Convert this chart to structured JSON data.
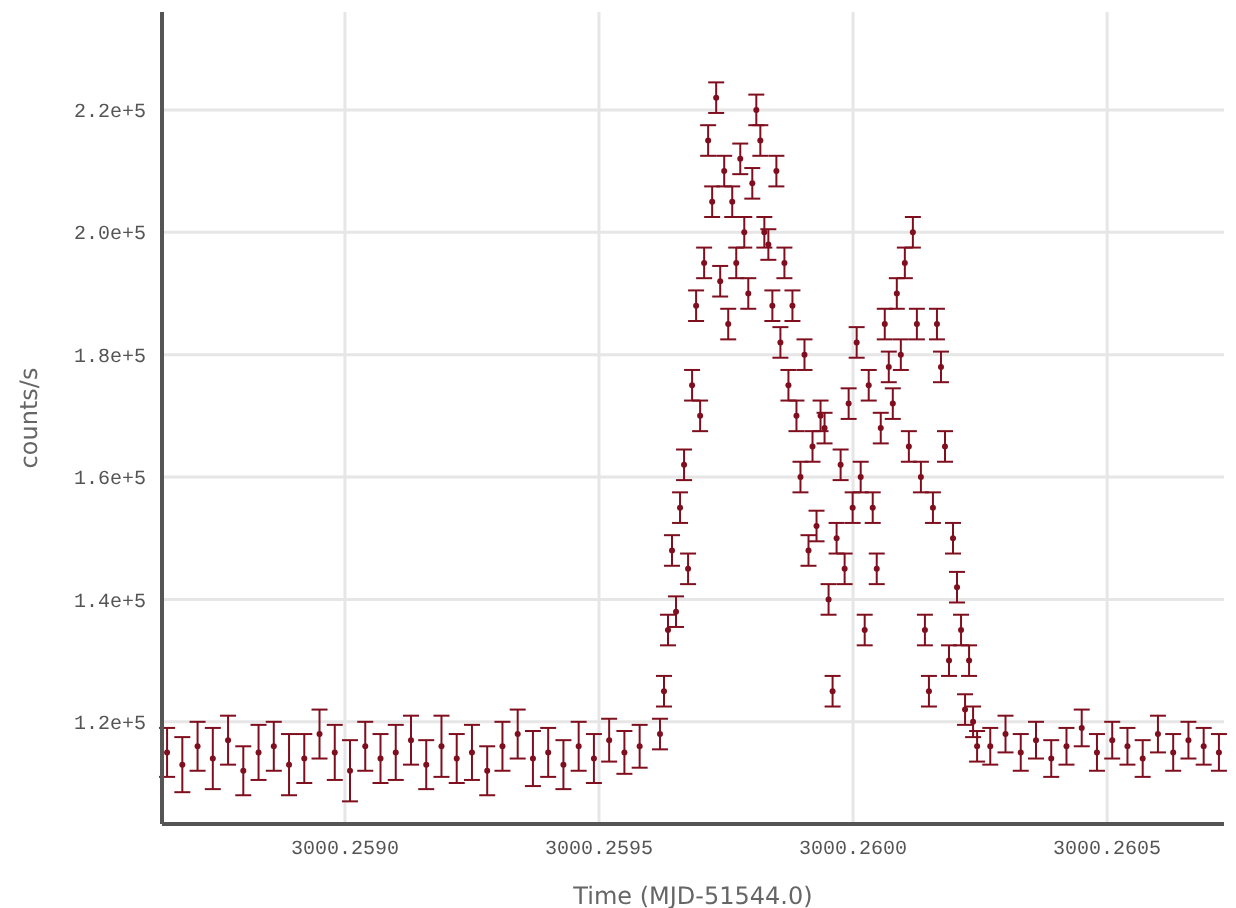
{
  "chart_data": {
    "type": "scatter",
    "xlabel": "Time (MJD-51544.0)",
    "ylabel": "counts/s",
    "marker": "circle",
    "grid": true,
    "xlim": [
      3000.25864,
      3000.26073
    ],
    "xticks": [
      {
        "value": 3000.259,
        "label": "3000.2590"
      },
      {
        "value": 3000.2595,
        "label": "3000.2595"
      },
      {
        "value": 3000.26,
        "label": "3000.2600"
      },
      {
        "value": 3000.2605,
        "label": "3000.2605"
      }
    ],
    "ylim": [
      103300,
      236000
    ],
    "yticks": [
      {
        "value": 120000,
        "label": "1.2e+5"
      },
      {
        "value": 140000,
        "label": "1.4e+5"
      },
      {
        "value": 160000,
        "label": "1.6e+5"
      },
      {
        "value": 180000,
        "label": "1.8e+5"
      },
      {
        "value": 200000,
        "label": "2.0e+5"
      },
      {
        "value": 220000,
        "label": "2.2e+5"
      }
    ],
    "series": [
      {
        "color": "#7f0f1e",
        "x": [
          3000.25865,
          3000.25868,
          3000.25871,
          3000.25874,
          3000.25877,
          3000.2588,
          3000.25883,
          3000.25886,
          3000.25889,
          3000.25892,
          3000.25895,
          3000.25898,
          3000.25901,
          3000.25904,
          3000.25907,
          3000.2591,
          3000.25913,
          3000.25916,
          3000.25919,
          3000.25922,
          3000.25925,
          3000.25928,
          3000.25931,
          3000.25934,
          3000.25937,
          3000.2594,
          3000.25943,
          3000.25946,
          3000.25949,
          3000.25952,
          3000.25955,
          3000.25958,
          3000.25962,
          3000.2596279,
          3000.2596358,
          3000.2596437,
          3000.2596516,
          3000.2596595,
          3000.2596674,
          3000.2596753,
          3000.2596832,
          3000.2596911,
          3000.259699,
          3000.2597069,
          3000.2597148,
          3000.2597227,
          3000.2597306,
          3000.2597385,
          3000.2597464,
          3000.2597543,
          3000.2597622,
          3000.2597701,
          3000.259778,
          3000.2597859,
          3000.2597938,
          3000.2598017,
          3000.2598096,
          3000.2598175,
          3000.2598254,
          3000.2598333,
          3000.2598412,
          3000.2598491,
          3000.259857,
          3000.2598649,
          3000.2598728,
          3000.2598807,
          3000.2598886,
          3000.2598965,
          3000.2599044,
          3000.2599123,
          3000.2599202,
          3000.2599281,
          3000.259936,
          3000.2599439,
          3000.2599518,
          3000.2599597,
          3000.2599676,
          3000.2599755,
          3000.2599834,
          3000.2599913,
          3000.2599992,
          3000.2600071,
          3000.260015,
          3000.2600229,
          3000.2600308,
          3000.2600387,
          3000.2600466,
          3000.2600545,
          3000.2600624,
          3000.2600703,
          3000.2600782,
          3000.2600861,
          3000.260094,
          3000.2601019,
          3000.2601098,
          3000.2601177,
          3000.2601256,
          3000.2601335,
          3000.2601414,
          3000.2601493,
          3000.2601572,
          3000.2601651,
          3000.260173,
          3000.2601809,
          3000.2601888,
          3000.2601967,
          3000.2602046,
          3000.2602125,
          3000.2602204,
          3000.2602283,
          3000.2602362,
          3000.2602441,
          3000.26027,
          3000.2603,
          3000.26033,
          3000.26036,
          3000.26039,
          3000.26042,
          3000.26045,
          3000.26048,
          3000.26051,
          3000.26054,
          3000.26057,
          3000.2606,
          3000.26063,
          3000.26066,
          3000.26069,
          3000.26072
        ],
        "values": [
          115000,
          113000,
          116000,
          114000,
          117000,
          112000,
          115000,
          116000,
          113000,
          114000,
          118000,
          115000,
          112000,
          116000,
          114000,
          115000,
          117000,
          113000,
          116000,
          114000,
          115000,
          112000,
          116000,
          118000,
          114000,
          115000,
          113000,
          116000,
          114000,
          117000,
          115000,
          116000,
          118000,
          125000,
          135000,
          148000,
          138000,
          155000,
          162000,
          145000,
          175000,
          188000,
          170000,
          195000,
          215000,
          205000,
          222000,
          192000,
          210000,
          185000,
          205000,
          195000,
          212000,
          200000,
          190000,
          208000,
          220000,
          215000,
          200000,
          198000,
          188000,
          210000,
          182000,
          195000,
          175000,
          188000,
          170000,
          160000,
          180000,
          148000,
          165000,
          152000,
          170000,
          168000,
          140000,
          125000,
          150000,
          162000,
          145000,
          172000,
          155000,
          182000,
          160000,
          135000,
          175000,
          155000,
          145000,
          168000,
          185000,
          178000,
          172000,
          190000,
          180000,
          195000,
          165000,
          200000,
          185000,
          160000,
          135000,
          125000,
          155000,
          185000,
          178000,
          165000,
          130000,
          150000,
          142000,
          135000,
          122000,
          130000,
          120000,
          116000,
          116000,
          118000,
          115000,
          117000,
          114000,
          116000,
          119000,
          115000,
          117000,
          116000,
          114000,
          118000,
          115000,
          117000,
          116000,
          115000
        ],
        "errors": [
          4000,
          4500,
          4000,
          5000,
          4000,
          4000,
          4500,
          4000,
          5000,
          4000,
          4000,
          4500,
          5000,
          4000,
          4000,
          4500,
          4000,
          4000,
          5000,
          4000,
          4500,
          4000,
          4000,
          4000,
          4500,
          4000,
          4000,
          4000,
          4000,
          3500,
          3500,
          3500,
          2500,
          2500,
          2500,
          2500,
          2500,
          2500,
          2500,
          2500,
          2500,
          2500,
          2500,
          2500,
          2500,
          2500,
          2500,
          2500,
          2500,
          2500,
          2500,
          2500,
          2500,
          2500,
          2500,
          2500,
          2500,
          2500,
          2500,
          2500,
          2500,
          2500,
          2500,
          2500,
          2500,
          2500,
          2500,
          2500,
          2500,
          2500,
          2500,
          2500,
          2500,
          2500,
          2500,
          2500,
          2500,
          2500,
          2500,
          2500,
          2500,
          2500,
          2500,
          2500,
          2500,
          2500,
          2500,
          2500,
          2500,
          2500,
          2500,
          2500,
          2500,
          2500,
          2500,
          2500,
          2500,
          2500,
          2500,
          2500,
          2500,
          2500,
          2500,
          2500,
          2500,
          2500,
          2500,
          2500,
          2500,
          2500,
          2500,
          2500,
          3000,
          3000,
          3000,
          3000,
          3000,
          3000,
          3000,
          3000,
          3000,
          3000,
          3000,
          3000,
          3000,
          3000,
          3000,
          3000
        ]
      }
    ]
  }
}
